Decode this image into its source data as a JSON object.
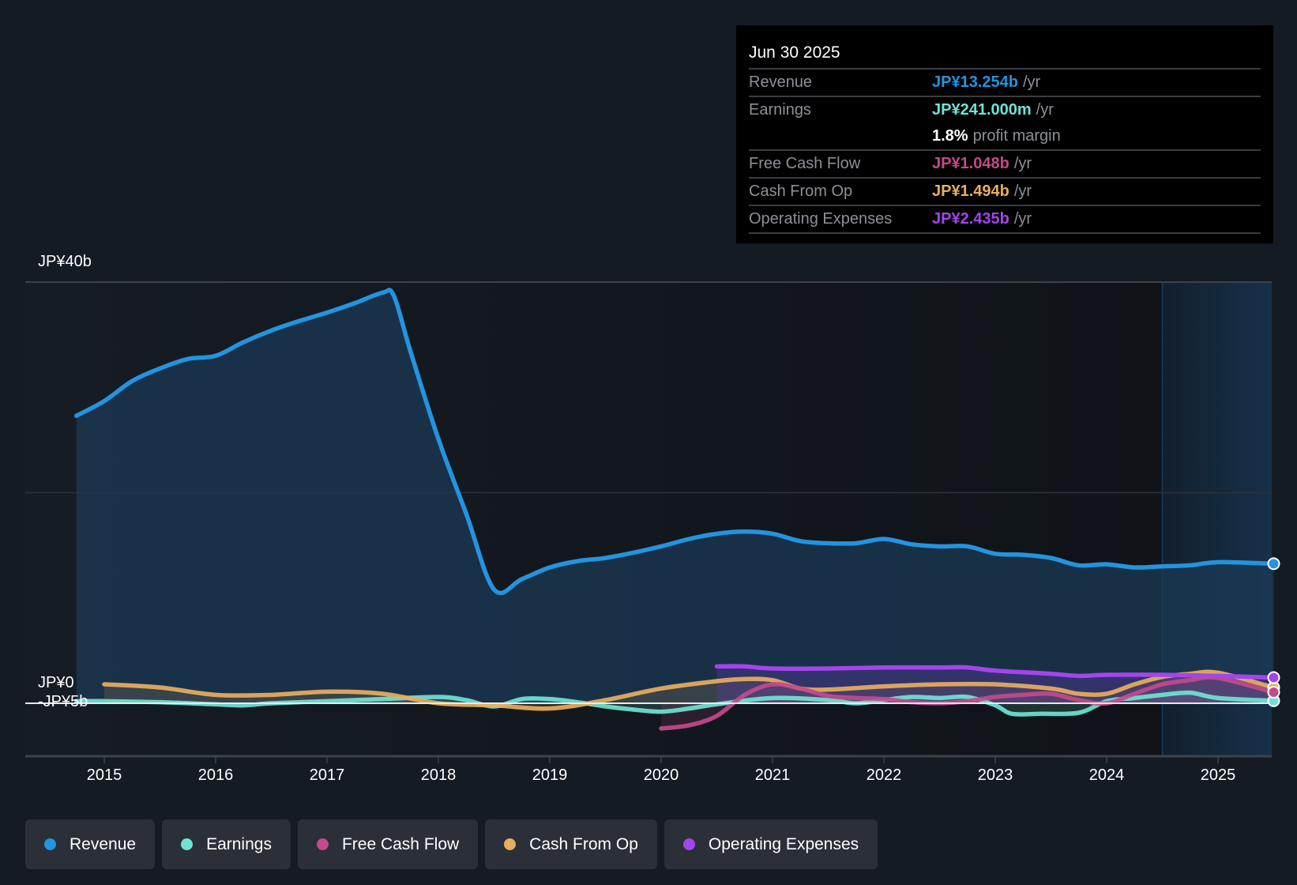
{
  "tooltip": {
    "date": "Jun 30 2025",
    "rows": [
      {
        "label": "Revenue",
        "value": "JP¥13.254b",
        "unit": "/yr",
        "color": "#2394df"
      },
      {
        "label": "Earnings",
        "value": "JP¥241.000m",
        "unit": "/yr",
        "color": "#6fe3d3"
      },
      {
        "label": "",
        "value": "1.8%",
        "unit": "profit margin",
        "color": "#ffffff"
      },
      {
        "label": "Free Cash Flow",
        "value": "JP¥1.048b",
        "unit": "/yr",
        "color": "#c34a8b"
      },
      {
        "label": "Cash From Op",
        "value": "JP¥1.494b",
        "unit": "/yr",
        "color": "#e8ae5e"
      },
      {
        "label": "Operating Expenses",
        "value": "JP¥2.435b",
        "unit": "/yr",
        "color": "#a445ec"
      }
    ]
  },
  "legend": [
    {
      "label": "Revenue",
      "color": "#2394df"
    },
    {
      "label": "Earnings",
      "color": "#6fe3d3"
    },
    {
      "label": "Free Cash Flow",
      "color": "#c34a8b"
    },
    {
      "label": "Cash From Op",
      "color": "#e8ae5e"
    },
    {
      "label": "Operating Expenses",
      "color": "#a445ec"
    }
  ],
  "chart_data": {
    "type": "line",
    "title": "",
    "xlabel": "",
    "ylabel": "",
    "xlim": [
      2014.3,
      2025.5
    ],
    "ylim": [
      -5,
      40
    ],
    "y_ticks": [
      {
        "value": 40,
        "label": "JP¥40b"
      },
      {
        "value": 0,
        "label": "JP¥0"
      },
      {
        "value": -5,
        "label": "-JP¥5b"
      }
    ],
    "x_ticks": [
      2015,
      2016,
      2017,
      2018,
      2019,
      2020,
      2021,
      2022,
      2023,
      2024,
      2025
    ],
    "x_tick_labels": [
      "2015",
      "2016",
      "2017",
      "2018",
      "2019",
      "2020",
      "2021",
      "2022",
      "2023",
      "2024",
      "2025"
    ],
    "units": "JP¥ billions",
    "grid": true,
    "legend_position": "bottom-left",
    "highlight_range": [
      2024.5,
      2025.5
    ],
    "series": [
      {
        "name": "Revenue",
        "color": "#2394df",
        "area": true,
        "x": [
          2014.75,
          2015,
          2015.25,
          2015.5,
          2015.75,
          2016,
          2016.25,
          2016.5,
          2016.75,
          2017,
          2017.25,
          2017.5,
          2017.6,
          2017.75,
          2018,
          2018.25,
          2018.5,
          2018.75,
          2019,
          2019.25,
          2019.5,
          2019.75,
          2020,
          2020.25,
          2020.5,
          2020.75,
          2021,
          2021.25,
          2021.5,
          2021.75,
          2022,
          2022.25,
          2022.5,
          2022.75,
          2023,
          2023.25,
          2023.5,
          2023.75,
          2024,
          2024.25,
          2024.5,
          2024.75,
          2025,
          2025.5
        ],
        "values": [
          27.3,
          28.7,
          30.6,
          31.8,
          32.7,
          33.0,
          34.3,
          35.4,
          36.3,
          37.1,
          38.0,
          39.0,
          38.7,
          33.4,
          25.1,
          18.0,
          10.8,
          11.8,
          12.9,
          13.5,
          13.8,
          14.3,
          14.9,
          15.6,
          16.1,
          16.3,
          16.1,
          15.4,
          15.2,
          15.2,
          15.6,
          15.1,
          14.9,
          14.9,
          14.2,
          14.1,
          13.8,
          13.1,
          13.2,
          12.9,
          13.0,
          13.1,
          13.4,
          13.254
        ]
      },
      {
        "name": "Earnings",
        "color": "#6fe3d3",
        "area": false,
        "x": [
          2014.75,
          2015,
          2015.5,
          2016,
          2016.25,
          2016.5,
          2017,
          2017.5,
          2018,
          2018.25,
          2018.5,
          2018.75,
          2019,
          2019.25,
          2019.5,
          2019.75,
          2020,
          2020.25,
          2020.5,
          2021,
          2021.5,
          2021.75,
          2022,
          2022.25,
          2022.5,
          2022.75,
          2023,
          2023.15,
          2023.4,
          2023.75,
          2024,
          2024.25,
          2024.5,
          2024.75,
          2025,
          2025.5
        ],
        "values": [
          0.2,
          0.2,
          0.1,
          -0.1,
          -0.2,
          0.0,
          0.2,
          0.4,
          0.6,
          0.3,
          -0.3,
          0.4,
          0.4,
          0.1,
          -0.3,
          -0.6,
          -0.8,
          -0.5,
          -0.1,
          0.5,
          0.3,
          0.0,
          0.3,
          0.6,
          0.5,
          0.6,
          -0.2,
          -1.0,
          -1.0,
          -0.9,
          0.2,
          0.5,
          0.8,
          1.0,
          0.5,
          0.241
        ]
      },
      {
        "name": "Free Cash Flow",
        "color": "#c34a8b",
        "area": false,
        "x": [
          2020,
          2020.25,
          2020.5,
          2020.75,
          2021,
          2021.25,
          2021.5,
          2021.75,
          2022,
          2022.25,
          2022.5,
          2022.75,
          2023,
          2023.25,
          2023.5,
          2023.75,
          2024,
          2024.25,
          2024.5,
          2024.75,
          2025,
          2025.5
        ],
        "values": [
          -2.4,
          -2.1,
          -1.2,
          0.8,
          1.8,
          1.4,
          0.7,
          0.5,
          0.4,
          0.1,
          0.0,
          0.2,
          0.6,
          0.8,
          0.9,
          0.3,
          0.0,
          0.9,
          1.8,
          2.2,
          2.4,
          1.048
        ]
      },
      {
        "name": "Cash From Op",
        "color": "#e8ae5e",
        "area": false,
        "x": [
          2015,
          2015.5,
          2016,
          2016.5,
          2017,
          2017.5,
          2018,
          2018.5,
          2019,
          2019.5,
          2020,
          2020.5,
          2020.75,
          2021,
          2021.25,
          2021.5,
          2022,
          2022.5,
          2023,
          2023.5,
          2023.75,
          2024,
          2024.25,
          2024.5,
          2024.75,
          2025,
          2025.5
        ],
        "values": [
          1.8,
          1.5,
          0.8,
          0.8,
          1.1,
          0.9,
          0.0,
          -0.2,
          -0.5,
          0.3,
          1.4,
          2.1,
          2.3,
          2.2,
          1.4,
          1.3,
          1.6,
          1.8,
          1.8,
          1.4,
          0.9,
          0.9,
          1.8,
          2.5,
          2.8,
          2.9,
          1.494
        ]
      },
      {
        "name": "Operating Expenses",
        "color": "#a445ec",
        "area": true,
        "x": [
          2020.5,
          2020.75,
          2021,
          2021.5,
          2022,
          2022.5,
          2022.75,
          2023,
          2023.5,
          2023.75,
          2024,
          2024.5,
          2025,
          2025.5
        ],
        "values": [
          3.5,
          3.5,
          3.3,
          3.3,
          3.4,
          3.4,
          3.4,
          3.1,
          2.8,
          2.6,
          2.7,
          2.7,
          2.6,
          2.435
        ]
      }
    ]
  }
}
